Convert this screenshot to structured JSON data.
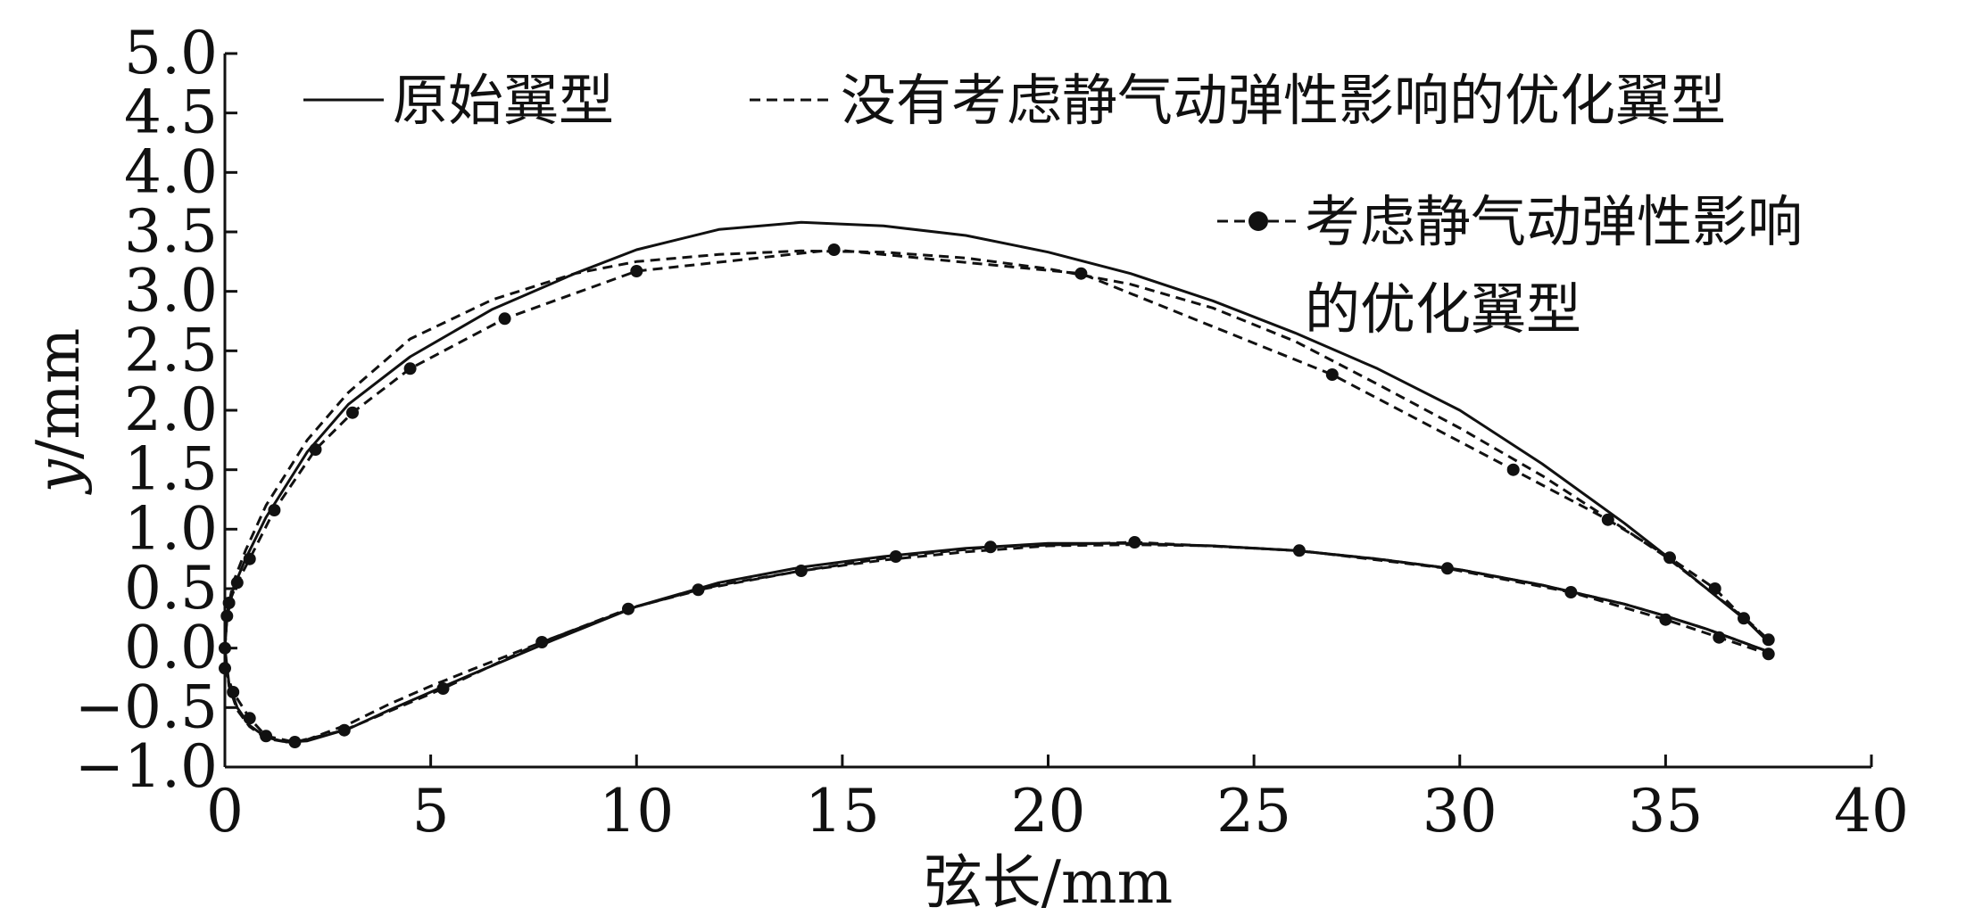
{
  "chart_data": {
    "type": "line",
    "xlabel": "弦长/mm",
    "ylabel_var": "y",
    "ylabel_unit": "/mm",
    "xlim": [
      0,
      40
    ],
    "ylim": [
      -1.0,
      5.0
    ],
    "xticks": [
      "0",
      "5",
      "10",
      "15",
      "20",
      "25",
      "30",
      "35",
      "40"
    ],
    "yticks": [
      "−1.0",
      "−0.5",
      "0.0",
      "0.5",
      "1.0",
      "1.5",
      "2.0",
      "2.5",
      "3.0",
      "3.5",
      "4.0",
      "4.5",
      "5.0"
    ],
    "grid": false,
    "legend_position": "top-right",
    "series": [
      {
        "name": "原始翼型",
        "style": "solid",
        "upper": [
          [
            0.0,
            0.0
          ],
          [
            0.05,
            0.25
          ],
          [
            0.2,
            0.5
          ],
          [
            0.5,
            0.75
          ],
          [
            1.0,
            1.1
          ],
          [
            2.0,
            1.65
          ],
          [
            3.0,
            2.05
          ],
          [
            4.5,
            2.45
          ],
          [
            6.5,
            2.85
          ],
          [
            8.5,
            3.15
          ],
          [
            10.0,
            3.35
          ],
          [
            12.0,
            3.52
          ],
          [
            14.0,
            3.58
          ],
          [
            16.0,
            3.55
          ],
          [
            18.0,
            3.47
          ],
          [
            20.0,
            3.33
          ],
          [
            22.0,
            3.15
          ],
          [
            24.0,
            2.92
          ],
          [
            26.0,
            2.65
          ],
          [
            28.0,
            2.35
          ],
          [
            30.0,
            2.0
          ],
          [
            32.0,
            1.55
          ],
          [
            34.0,
            1.05
          ],
          [
            35.0,
            0.78
          ],
          [
            36.0,
            0.5
          ],
          [
            37.0,
            0.22
          ],
          [
            37.5,
            0.05
          ]
        ],
        "lower": [
          [
            0.0,
            0.0
          ],
          [
            0.1,
            -0.3
          ],
          [
            0.3,
            -0.5
          ],
          [
            0.6,
            -0.65
          ],
          [
            1.0,
            -0.75
          ],
          [
            1.5,
            -0.79
          ],
          [
            2.0,
            -0.78
          ],
          [
            3.0,
            -0.68
          ],
          [
            4.0,
            -0.52
          ],
          [
            5.0,
            -0.37
          ],
          [
            6.0,
            -0.22
          ],
          [
            8.0,
            0.07
          ],
          [
            10.0,
            0.35
          ],
          [
            12.0,
            0.55
          ],
          [
            14.0,
            0.68
          ],
          [
            16.0,
            0.77
          ],
          [
            18.0,
            0.84
          ],
          [
            20.0,
            0.88
          ],
          [
            22.0,
            0.88
          ],
          [
            24.0,
            0.86
          ],
          [
            26.0,
            0.82
          ],
          [
            28.0,
            0.75
          ],
          [
            30.0,
            0.66
          ],
          [
            32.0,
            0.53
          ],
          [
            34.0,
            0.37
          ],
          [
            35.0,
            0.27
          ],
          [
            36.0,
            0.16
          ],
          [
            37.5,
            -0.03
          ]
        ]
      },
      {
        "name": "没有考虑静气动弹性影响的优化翼型",
        "style": "dashed",
        "upper": [
          [
            0.0,
            0.0
          ],
          [
            0.05,
            0.28
          ],
          [
            0.2,
            0.55
          ],
          [
            0.5,
            0.82
          ],
          [
            1.0,
            1.2
          ],
          [
            2.0,
            1.75
          ],
          [
            3.0,
            2.15
          ],
          [
            4.5,
            2.6
          ],
          [
            6.5,
            2.93
          ],
          [
            8.5,
            3.15
          ],
          [
            10.0,
            3.25
          ],
          [
            12.0,
            3.31
          ],
          [
            14.0,
            3.34
          ],
          [
            16.0,
            3.33
          ],
          [
            18.0,
            3.28
          ],
          [
            20.0,
            3.19
          ],
          [
            22.0,
            3.06
          ],
          [
            24.0,
            2.86
          ],
          [
            26.0,
            2.58
          ],
          [
            28.0,
            2.22
          ],
          [
            30.0,
            1.85
          ],
          [
            32.0,
            1.45
          ],
          [
            34.0,
            1.0
          ],
          [
            35.0,
            0.77
          ],
          [
            36.0,
            0.5
          ],
          [
            37.0,
            0.23
          ],
          [
            37.5,
            0.07
          ]
        ],
        "lower": [
          [
            0.0,
            0.0
          ],
          [
            0.1,
            -0.32
          ],
          [
            0.3,
            -0.52
          ],
          [
            0.6,
            -0.66
          ],
          [
            1.0,
            -0.76
          ],
          [
            1.5,
            -0.79
          ],
          [
            2.0,
            -0.77
          ],
          [
            3.0,
            -0.64
          ],
          [
            4.0,
            -0.47
          ],
          [
            5.0,
            -0.32
          ],
          [
            6.0,
            -0.18
          ],
          [
            8.0,
            0.09
          ],
          [
            10.0,
            0.35
          ],
          [
            12.0,
            0.53
          ],
          [
            14.0,
            0.65
          ],
          [
            16.0,
            0.74
          ],
          [
            18.0,
            0.81
          ],
          [
            20.0,
            0.86
          ],
          [
            22.0,
            0.87
          ],
          [
            24.0,
            0.86
          ],
          [
            26.0,
            0.82
          ],
          [
            28.0,
            0.75
          ],
          [
            30.0,
            0.66
          ],
          [
            32.0,
            0.53
          ],
          [
            34.0,
            0.37
          ],
          [
            35.0,
            0.27
          ],
          [
            36.0,
            0.16
          ],
          [
            37.5,
            -0.03
          ]
        ]
      },
      {
        "name": "考虑静气动弹性影响的优化翼型",
        "legend_lines": [
          "考虑静气动弹性影响",
          "的优化翼型"
        ],
        "style": "dashed-marker",
        "upper": [
          [
            0.0,
            0.0
          ],
          [
            0.05,
            0.27
          ],
          [
            0.1,
            0.38
          ],
          [
            0.3,
            0.55
          ],
          [
            0.6,
            0.75
          ],
          [
            1.2,
            1.16
          ],
          [
            2.2,
            1.67
          ],
          [
            3.1,
            1.98
          ],
          [
            4.5,
            2.35
          ],
          [
            6.8,
            2.77
          ],
          [
            10.0,
            3.17
          ],
          [
            14.8,
            3.35
          ],
          [
            20.8,
            3.15
          ],
          [
            26.9,
            2.3
          ],
          [
            31.3,
            1.5
          ],
          [
            33.6,
            1.08
          ],
          [
            35.1,
            0.76
          ],
          [
            36.2,
            0.5
          ],
          [
            36.9,
            0.25
          ],
          [
            37.5,
            0.07
          ]
        ],
        "lower": [
          [
            0.0,
            -0.17
          ],
          [
            0.2,
            -0.37
          ],
          [
            0.6,
            -0.59
          ],
          [
            1.0,
            -0.74
          ],
          [
            1.7,
            -0.79
          ],
          [
            2.9,
            -0.69
          ],
          [
            5.3,
            -0.34
          ],
          [
            7.7,
            0.05
          ],
          [
            9.8,
            0.33
          ],
          [
            11.5,
            0.49
          ],
          [
            14.0,
            0.65
          ],
          [
            16.3,
            0.77
          ],
          [
            18.6,
            0.85
          ],
          [
            22.1,
            0.89
          ],
          [
            26.1,
            0.82
          ],
          [
            29.7,
            0.67
          ],
          [
            32.7,
            0.47
          ],
          [
            35.0,
            0.24
          ],
          [
            36.3,
            0.09
          ],
          [
            37.5,
            -0.05
          ]
        ]
      }
    ]
  }
}
